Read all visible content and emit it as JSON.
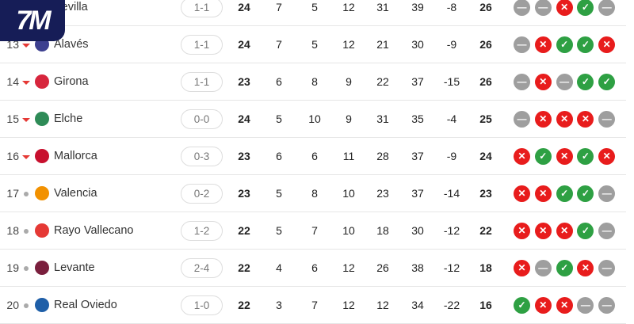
{
  "brand": {
    "logo_text": "7M"
  },
  "colors": {
    "win": "#2ea043",
    "loss": "#e81c1c",
    "draw": "#9e9e9e",
    "trend_down": "#e53935"
  },
  "rows": [
    {
      "rank": "",
      "trend": "none",
      "team": "Sevilla",
      "logo": "#d9291c",
      "last": "1-1",
      "p": 24,
      "w": 7,
      "d": 5,
      "l": 12,
      "gf": 31,
      "ga": 39,
      "gd": -8,
      "pts": 26,
      "form": [
        "D",
        "D",
        "L",
        "W",
        "D"
      ]
    },
    {
      "rank": "13",
      "trend": "down",
      "team": "Alavés",
      "logo": "#3c3f8f",
      "last": "1-1",
      "p": 24,
      "w": 7,
      "d": 5,
      "l": 12,
      "gf": 21,
      "ga": 30,
      "gd": -9,
      "pts": 26,
      "form": [
        "D",
        "L",
        "W",
        "W",
        "L"
      ]
    },
    {
      "rank": "14",
      "trend": "down",
      "team": "Girona",
      "logo": "#d7263d",
      "last": "1-1",
      "p": 23,
      "w": 6,
      "d": 8,
      "l": 9,
      "gf": 22,
      "ga": 37,
      "gd": -15,
      "pts": 26,
      "form": [
        "D",
        "L",
        "D",
        "W",
        "W"
      ]
    },
    {
      "rank": "15",
      "trend": "down",
      "team": "Elche",
      "logo": "#2e8b57",
      "last": "0-0",
      "p": 24,
      "w": 5,
      "d": 10,
      "l": 9,
      "gf": 31,
      "ga": 35,
      "gd": -4,
      "pts": 25,
      "form": [
        "D",
        "L",
        "L",
        "L",
        "D"
      ]
    },
    {
      "rank": "16",
      "trend": "down",
      "team": "Mallorca",
      "logo": "#c8102e",
      "last": "0-3",
      "p": 23,
      "w": 6,
      "d": 6,
      "l": 11,
      "gf": 28,
      "ga": 37,
      "gd": -9,
      "pts": 24,
      "form": [
        "L",
        "W",
        "L",
        "W",
        "L"
      ]
    },
    {
      "rank": "17",
      "trend": "same",
      "team": "Valencia",
      "logo": "#f29100",
      "last": "0-2",
      "p": 23,
      "w": 5,
      "d": 8,
      "l": 10,
      "gf": 23,
      "ga": 37,
      "gd": -14,
      "pts": 23,
      "form": [
        "L",
        "L",
        "W",
        "W",
        "D"
      ]
    },
    {
      "rank": "18",
      "trend": "same",
      "team": "Rayo Vallecano",
      "logo": "#e53935",
      "last": "1-2",
      "p": 22,
      "w": 5,
      "d": 7,
      "l": 10,
      "gf": 18,
      "ga": 30,
      "gd": -12,
      "pts": 22,
      "form": [
        "L",
        "L",
        "L",
        "W",
        "D"
      ]
    },
    {
      "rank": "19",
      "trend": "same",
      "team": "Levante",
      "logo": "#7a1f3d",
      "last": "2-4",
      "p": 22,
      "w": 4,
      "d": 6,
      "l": 12,
      "gf": 26,
      "ga": 38,
      "gd": -12,
      "pts": 18,
      "form": [
        "L",
        "D",
        "W",
        "L",
        "D"
      ]
    },
    {
      "rank": "20",
      "trend": "same",
      "team": "Real Oviedo",
      "logo": "#1f5fa8",
      "last": "1-0",
      "p": 22,
      "w": 3,
      "d": 7,
      "l": 12,
      "gf": 12,
      "ga": 34,
      "gd": -22,
      "pts": 16,
      "form": [
        "W",
        "L",
        "L",
        "D",
        "D"
      ]
    }
  ]
}
